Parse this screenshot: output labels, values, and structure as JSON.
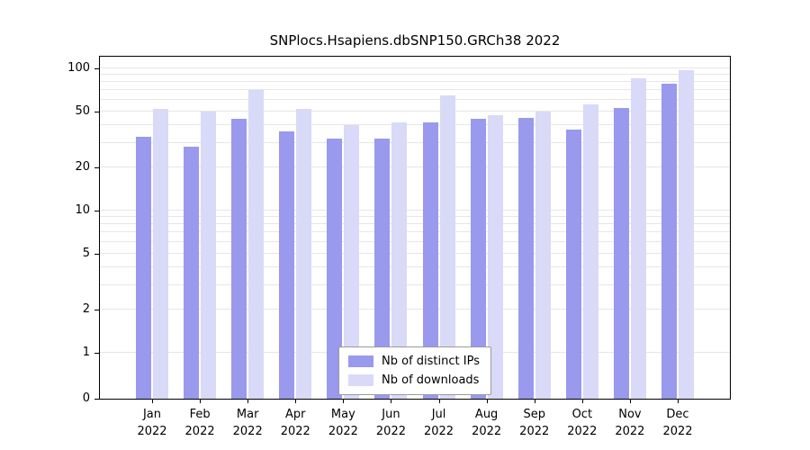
{
  "title": "SNPlocs.Hsapiens.dbSNP150.GRCh38 2022",
  "chart_data": {
    "type": "bar",
    "categories": [
      "Jan",
      "Feb",
      "Mar",
      "Apr",
      "May",
      "Jun",
      "Jul",
      "Aug",
      "Sep",
      "Oct",
      "Nov",
      "Dec"
    ],
    "year": "2022",
    "series": [
      {
        "name": "Nb of distinct IPs",
        "color": "#9999ee",
        "values": [
          33,
          28,
          44,
          36,
          32,
          32,
          42,
          44,
          45,
          37,
          53,
          78
        ]
      },
      {
        "name": "Nb of downloads",
        "color": "#d9d9f8",
        "values": [
          52,
          50,
          71,
          52,
          40,
          42,
          65,
          47,
          50,
          56,
          85,
          97
        ]
      }
    ],
    "yscale": "log",
    "yticks": [
      0,
      1,
      2,
      5,
      10,
      20,
      50,
      100
    ],
    "ylim": [
      0,
      110
    ],
    "grid": true,
    "legend_position": "bottom-center"
  }
}
